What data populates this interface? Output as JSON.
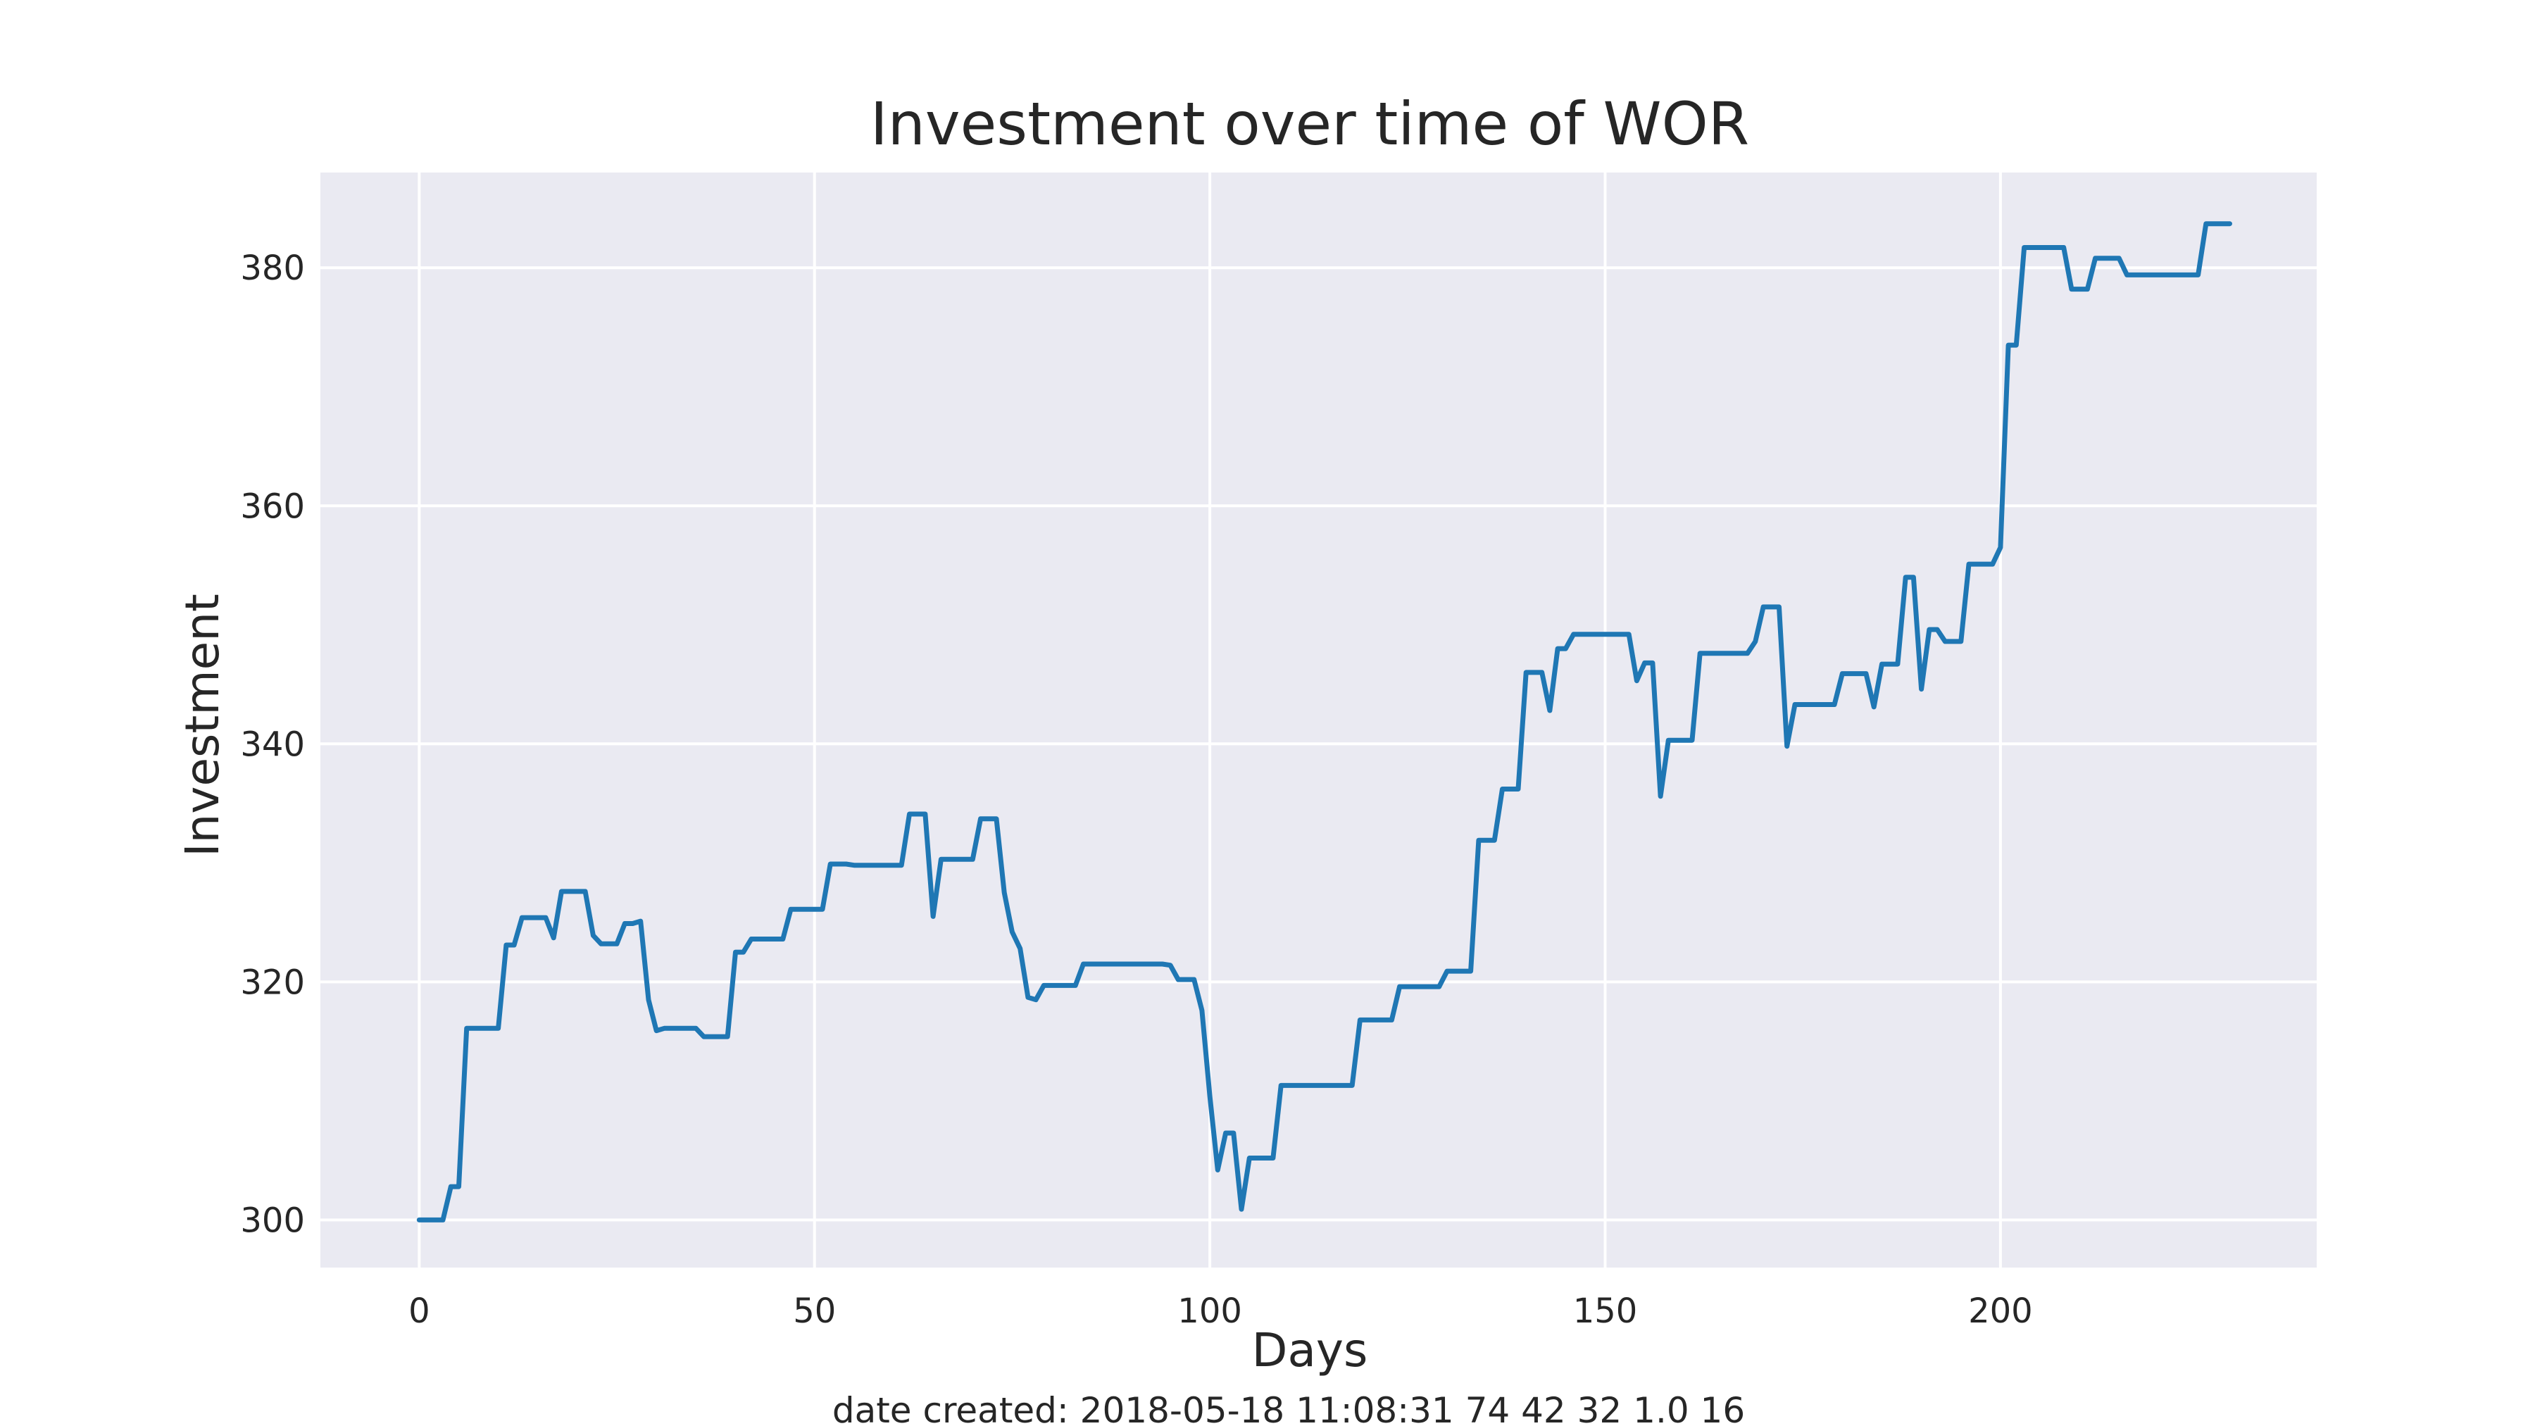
{
  "chart_data": {
    "type": "line",
    "title": "Investment over time of WOR",
    "xlabel": "Days",
    "ylabel": "Investment",
    "xlim": [
      -12.5,
      240
    ],
    "ylim": [
      296,
      388
    ],
    "xticks": [
      0,
      50,
      100,
      150,
      200
    ],
    "yticks": [
      300,
      320,
      340,
      360,
      380
    ],
    "grid": true,
    "legend": "none",
    "colors": {
      "background": "#eaeaf2",
      "grid": "#ffffff",
      "line": "#1f77b4"
    },
    "series": [
      {
        "points": [
          [
            0,
            300
          ],
          [
            3,
            300
          ],
          [
            4,
            302.8
          ],
          [
            5,
            302.8
          ],
          [
            6,
            316.1
          ],
          [
            10,
            316.1
          ],
          [
            11,
            323.1
          ],
          [
            12,
            323.1
          ],
          [
            13,
            325.4
          ],
          [
            16,
            325.4
          ],
          [
            17,
            323.7
          ],
          [
            18,
            327.6
          ],
          [
            21,
            327.6
          ],
          [
            22,
            323.9
          ],
          [
            23,
            323.2
          ],
          [
            25,
            323.2
          ],
          [
            26,
            324.9
          ],
          [
            27,
            324.9
          ],
          [
            28,
            325.1
          ],
          [
            29,
            318.5
          ],
          [
            30,
            315.9
          ],
          [
            31,
            316.1
          ],
          [
            35,
            316.1
          ],
          [
            36,
            315.4
          ],
          [
            39,
            315.4
          ],
          [
            40,
            322.5
          ],
          [
            41,
            322.5
          ],
          [
            42,
            323.6
          ],
          [
            46,
            323.6
          ],
          [
            47,
            326.1
          ],
          [
            51,
            326.1
          ],
          [
            52,
            329.9
          ],
          [
            54,
            329.9
          ],
          [
            55,
            329.8
          ],
          [
            61,
            329.8
          ],
          [
            62,
            334.1
          ],
          [
            64,
            334.1
          ],
          [
            65,
            325.5
          ],
          [
            66,
            330.3
          ],
          [
            70,
            330.3
          ],
          [
            71,
            333.7
          ],
          [
            73,
            333.7
          ],
          [
            74,
            327.5
          ],
          [
            75,
            324.2
          ],
          [
            76,
            322.8
          ],
          [
            77,
            318.7
          ],
          [
            78,
            318.5
          ],
          [
            79,
            319.7
          ],
          [
            83,
            319.7
          ],
          [
            84,
            321.5
          ],
          [
            94,
            321.5
          ],
          [
            95,
            321.4
          ],
          [
            96,
            320.2
          ],
          [
            98,
            320.2
          ],
          [
            99,
            317.6
          ],
          [
            100,
            310.4
          ],
          [
            101,
            304.2
          ],
          [
            102,
            307.3
          ],
          [
            103,
            307.3
          ],
          [
            104,
            300.9
          ],
          [
            105,
            305.2
          ],
          [
            108,
            305.2
          ],
          [
            109,
            311.3
          ],
          [
            118,
            311.3
          ],
          [
            119,
            316.8
          ],
          [
            123,
            316.8
          ],
          [
            124,
            319.6
          ],
          [
            129,
            319.6
          ],
          [
            130,
            320.9
          ],
          [
            133,
            320.9
          ],
          [
            134,
            331.9
          ],
          [
            136,
            331.9
          ],
          [
            137,
            336.2
          ],
          [
            139,
            336.2
          ],
          [
            140,
            346
          ],
          [
            142,
            346
          ],
          [
            143,
            342.8
          ],
          [
            144,
            348
          ],
          [
            145,
            348
          ],
          [
            146,
            349.2
          ],
          [
            153,
            349.2
          ],
          [
            154,
            345.3
          ],
          [
            155,
            346.8
          ],
          [
            156,
            346.8
          ],
          [
            157,
            335.6
          ],
          [
            158,
            340.3
          ],
          [
            161,
            340.3
          ],
          [
            162,
            347.6
          ],
          [
            168,
            347.6
          ],
          [
            169,
            348.6
          ],
          [
            170,
            351.5
          ],
          [
            172,
            351.5
          ],
          [
            173,
            339.8
          ],
          [
            174,
            343.3
          ],
          [
            179,
            343.3
          ],
          [
            180,
            345.9
          ],
          [
            183,
            345.9
          ],
          [
            184,
            343.1
          ],
          [
            185,
            346.7
          ],
          [
            187,
            346.7
          ],
          [
            188,
            354
          ],
          [
            189,
            354
          ],
          [
            190,
            344.6
          ],
          [
            191,
            349.6
          ],
          [
            192,
            349.6
          ],
          [
            193,
            348.6
          ],
          [
            195,
            348.6
          ],
          [
            196,
            355.1
          ],
          [
            199,
            355.1
          ],
          [
            200,
            356.5
          ],
          [
            201,
            373.5
          ],
          [
            202,
            373.5
          ],
          [
            203,
            381.7
          ],
          [
            208,
            381.7
          ],
          [
            209,
            378.2
          ],
          [
            211,
            378.2
          ],
          [
            212,
            380.8
          ],
          [
            215,
            380.8
          ],
          [
            216,
            379.4
          ],
          [
            225,
            379.4
          ],
          [
            226,
            383.7
          ],
          [
            229,
            383.7
          ]
        ]
      }
    ],
    "footer": "date created: 2018-05-18 11:08:31 74 42 32 1.0 16"
  }
}
